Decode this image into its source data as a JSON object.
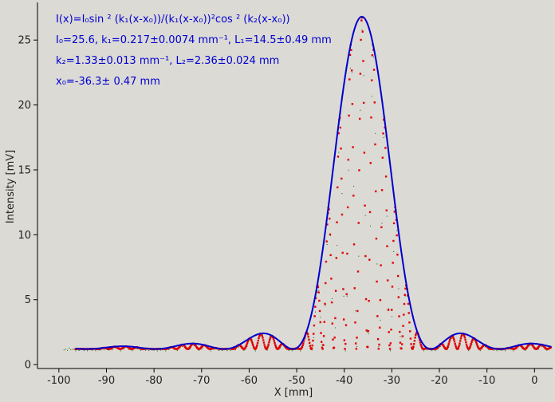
{
  "chart_data": {
    "type": "line",
    "xlabel": "X [mm]",
    "ylabel": "Intensity [mV]",
    "xlim": [
      -104.5,
      3.8
    ],
    "ylim": [
      -0.3,
      27.9
    ],
    "x_ticks": [
      -100,
      -90,
      -80,
      -70,
      -60,
      -50,
      -40,
      -30,
      -20,
      -10,
      0
    ],
    "y_ticks": [
      0,
      5,
      10,
      15,
      20,
      25
    ],
    "grid": false,
    "background": "#dcdad5",
    "annotation": {
      "line1": "I(x)=I₀sin ² (k₁(x-x₀))/(k₁(x-x₀))²cos ² (k₂(x-x₀))",
      "line2": "I₀=25.6,  k₁=0.217±0.0074 mm⁻¹,   L₁=14.5±0.49 mm",
      "line3": "k₂=1.33±0.013 mm⁻¹,   L₂=2.36±0.024 mm",
      "line4": "x₀=-36.3±   0.47 mm"
    },
    "model": {
      "I0": 25.6,
      "k1": 0.217,
      "k2": 1.33,
      "x0": -36.3,
      "offset": 1.2,
      "x_range": [
        -96.5,
        3.5
      ]
    },
    "series": [
      {
        "role": "fit",
        "color": "#0000cc",
        "values": "envelope I0*sinc^2 + offset"
      },
      {
        "role": "measured",
        "color": "#e00000",
        "values": "I0*sinc^2*cos^2 + offset"
      },
      {
        "role": "raw",
        "color": "#006400",
        "values": "sparse samples"
      }
    ]
  }
}
